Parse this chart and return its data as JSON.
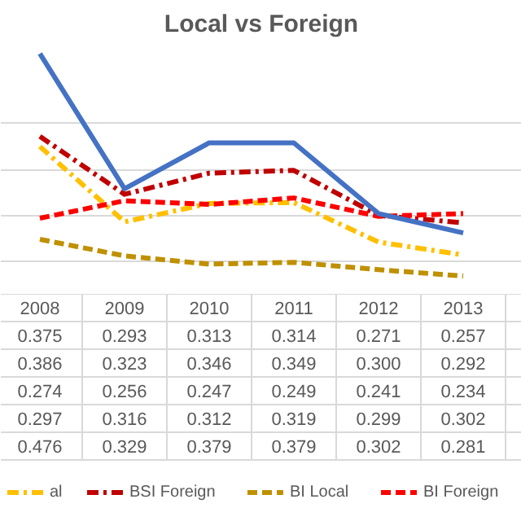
{
  "chart_data": {
    "type": "line",
    "title": "Local vs Foreign",
    "categories": [
      "2008",
      "2009",
      "2010",
      "2011",
      "2012",
      "2013"
    ],
    "yticks": [
      {
        "value": 0.25,
        "label": null
      },
      {
        "value": 0.3,
        "label": null
      },
      {
        "value": 0.35,
        "label": null
      },
      {
        "value": 0.4,
        "label": null
      }
    ],
    "grid": "y",
    "tick_labels": "x",
    "legend": "bottom",
    "series": [
      {
        "name": "al",
        "color": "#ffc000",
        "line_style": "dashdot",
        "values": [
          0.375,
          0.293,
          0.313,
          0.314,
          0.271,
          0.257
        ],
        "value_labels": [
          "0.375",
          "0.293",
          "0.313",
          "0.314",
          "0.271",
          "0.257"
        ]
      },
      {
        "name": "BSI Foreign",
        "color": "#c00000",
        "line_style": "dashdot",
        "values": [
          0.386,
          0.323,
          0.346,
          0.349,
          0.3,
          0.292
        ],
        "value_labels": [
          "0.386",
          "0.323",
          "0.346",
          "0.349",
          "0.300",
          "0.292"
        ]
      },
      {
        "name": "BI Local",
        "color": "#bf9000",
        "line_style": "dashed",
        "values": [
          0.274,
          0.256,
          0.247,
          0.249,
          0.241,
          0.234
        ],
        "value_labels": [
          "0.274",
          "0.256",
          "0.247",
          "0.249",
          "0.241",
          "0.234"
        ]
      },
      {
        "name": "BI Foreign",
        "color": "#ff0000",
        "line_style": "dashed",
        "values": [
          0.297,
          0.316,
          0.312,
          0.319,
          0.299,
          0.302
        ],
        "value_labels": [
          "0.297",
          "0.316",
          "0.312",
          "0.319",
          "0.299",
          "0.302"
        ]
      },
      {
        "color": "#4472c4",
        "line_style": "solid",
        "values": [
          0.476,
          0.329,
          0.379,
          0.379,
          0.302,
          0.281
        ],
        "value_labels": [
          "0.476",
          "0.329",
          "0.379",
          "0.379",
          "0.302",
          "0.281"
        ]
      }
    ]
  }
}
